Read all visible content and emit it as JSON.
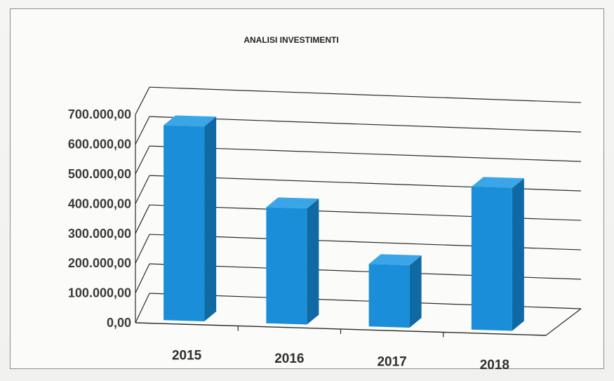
{
  "chart_data": {
    "type": "bar",
    "title": "ANALISI INVESTIMENTI",
    "categories": [
      "2015",
      "2016",
      "2017",
      "2018"
    ],
    "values": [
      655000,
      390000,
      210000,
      480000
    ],
    "yticks": [
      "0,00",
      "100.000,00",
      "200.000,00",
      "300.000,00",
      "400.000,00",
      "500.000,00",
      "600.000,00",
      "700.000,00"
    ],
    "ylim": [
      0,
      700000
    ],
    "grid": true,
    "legend": false,
    "style": "3d-column",
    "colors": {
      "bar_front": "#1a8ed8",
      "bar_side": "#0f6aa3",
      "bar_top": "#3aa6e8",
      "grid": "#2a2a2a",
      "text": "#333333"
    }
  }
}
